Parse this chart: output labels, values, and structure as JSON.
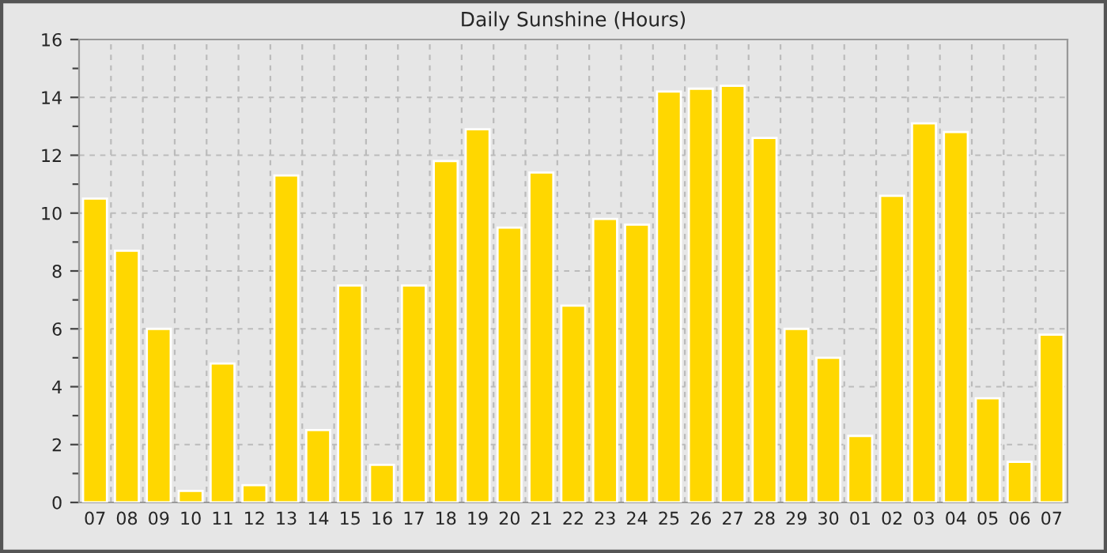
{
  "chart_data": {
    "type": "bar",
    "title": "Daily Sunshine (Hours)",
    "categories": [
      "07",
      "08",
      "09",
      "10",
      "11",
      "12",
      "13",
      "14",
      "15",
      "16",
      "17",
      "18",
      "19",
      "20",
      "21",
      "22",
      "23",
      "24",
      "25",
      "26",
      "27",
      "28",
      "29",
      "30",
      "01",
      "02",
      "03",
      "04",
      "05",
      "06",
      "07"
    ],
    "values": [
      10.5,
      8.7,
      6.0,
      0.4,
      4.8,
      0.6,
      11.3,
      2.5,
      7.5,
      1.3,
      7.5,
      11.8,
      12.9,
      9.5,
      11.4,
      6.8,
      9.8,
      9.6,
      14.2,
      14.3,
      14.4,
      12.6,
      6.0,
      5.0,
      2.3,
      10.6,
      13.1,
      12.8,
      3.6,
      1.4,
      5.8
    ],
    "color": "#ffd700",
    "ylim": [
      0,
      16
    ],
    "yticks": [
      0,
      {
        "value": 1,
        "label": null
      },
      2,
      {
        "value": 3,
        "label": null
      },
      4,
      {
        "value": 5,
        "label": null
      },
      6,
      {
        "value": 7,
        "label": null
      },
      8,
      {
        "value": 9,
        "label": null
      },
      10,
      {
        "value": 11,
        "label": null
      },
      12,
      {
        "value": 13,
        "label": null
      },
      14,
      {
        "value": 15,
        "label": null
      },
      16
    ],
    "grid": true
  }
}
